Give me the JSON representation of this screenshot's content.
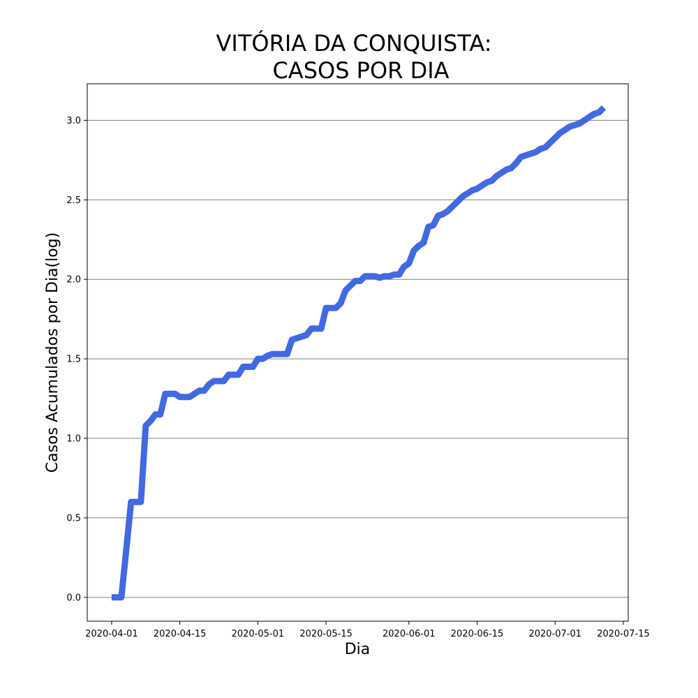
{
  "chart_data": {
    "type": "line",
    "title_lines": [
      "VITÓRIA DA CONQUISTA:",
      "CASOS POR DIA"
    ],
    "xlabel": "Dia",
    "ylabel": "Casos Acumulados por Dia(log)",
    "x_ticks": [
      "2020-04-01",
      "2020-04-15",
      "2020-05-01",
      "2020-05-15",
      "2020-06-01",
      "2020-06-15",
      "2020-07-01",
      "2020-07-15"
    ],
    "y_ticks": [
      "0.0",
      "0.5",
      "1.0",
      "1.5",
      "2.0",
      "2.5",
      "3.0"
    ],
    "ylim": [
      -0.15,
      3.23
    ],
    "xlim": [
      "2020-03-27",
      "2020-07-16"
    ],
    "grid": "horizontal",
    "line_color": "#4169e1",
    "series": [
      {
        "x": [
          "2020-04-01",
          "2020-04-02",
          "2020-04-03",
          "2020-04-04",
          "2020-04-05",
          "2020-04-06",
          "2020-04-07",
          "2020-04-08",
          "2020-04-09",
          "2020-04-10",
          "2020-04-11",
          "2020-04-12",
          "2020-04-13",
          "2020-04-14",
          "2020-04-15",
          "2020-04-16",
          "2020-04-17",
          "2020-04-18",
          "2020-04-19",
          "2020-04-20",
          "2020-04-21",
          "2020-04-22",
          "2020-04-23",
          "2020-04-24",
          "2020-04-25",
          "2020-04-26",
          "2020-04-27",
          "2020-04-28",
          "2020-04-29",
          "2020-04-30",
          "2020-05-01",
          "2020-05-02",
          "2020-05-03",
          "2020-05-04",
          "2020-05-05",
          "2020-05-06",
          "2020-05-07",
          "2020-05-08",
          "2020-05-09",
          "2020-05-10",
          "2020-05-11",
          "2020-05-12",
          "2020-05-13",
          "2020-05-14",
          "2020-05-15",
          "2020-05-16",
          "2020-05-17",
          "2020-05-18",
          "2020-05-19",
          "2020-05-20",
          "2020-05-21",
          "2020-05-22",
          "2020-05-23",
          "2020-05-24",
          "2020-05-25",
          "2020-05-26",
          "2020-05-27",
          "2020-05-28",
          "2020-05-29",
          "2020-05-30",
          "2020-05-31",
          "2020-06-01",
          "2020-06-02",
          "2020-06-03",
          "2020-06-04",
          "2020-06-05",
          "2020-06-06",
          "2020-06-07",
          "2020-06-08",
          "2020-06-09",
          "2020-06-10",
          "2020-06-11",
          "2020-06-12",
          "2020-06-13",
          "2020-06-14",
          "2020-06-15",
          "2020-06-16",
          "2020-06-17",
          "2020-06-18",
          "2020-06-19",
          "2020-06-20",
          "2020-06-21",
          "2020-06-22",
          "2020-06-23",
          "2020-06-24",
          "2020-06-25",
          "2020-06-26",
          "2020-06-27",
          "2020-06-28",
          "2020-06-29",
          "2020-06-30",
          "2020-07-01",
          "2020-07-02",
          "2020-07-03",
          "2020-07-04",
          "2020-07-05",
          "2020-07-06",
          "2020-07-07",
          "2020-07-08",
          "2020-07-09",
          "2020-07-10",
          "2020-07-11"
        ],
        "values": [
          0.0,
          0.0,
          0.0,
          0.3,
          0.6,
          0.6,
          0.6,
          1.08,
          1.11,
          1.15,
          1.15,
          1.28,
          1.28,
          1.28,
          1.26,
          1.26,
          1.26,
          1.28,
          1.3,
          1.3,
          1.34,
          1.36,
          1.36,
          1.36,
          1.4,
          1.4,
          1.4,
          1.45,
          1.45,
          1.45,
          1.5,
          1.5,
          1.52,
          1.53,
          1.53,
          1.53,
          1.53,
          1.62,
          1.63,
          1.64,
          1.65,
          1.69,
          1.69,
          1.69,
          1.82,
          1.82,
          1.82,
          1.85,
          1.93,
          1.96,
          1.99,
          1.99,
          2.02,
          2.02,
          2.02,
          2.01,
          2.02,
          2.02,
          2.03,
          2.03,
          2.08,
          2.1,
          2.18,
          2.21,
          2.23,
          2.33,
          2.34,
          2.4,
          2.41,
          2.43,
          2.46,
          2.49,
          2.52,
          2.54,
          2.56,
          2.57,
          2.59,
          2.61,
          2.62,
          2.65,
          2.67,
          2.69,
          2.7,
          2.73,
          2.77,
          2.78,
          2.79,
          2.8,
          2.82,
          2.83,
          2.86,
          2.89,
          2.92,
          2.94,
          2.96,
          2.97,
          2.98,
          3.0,
          3.02,
          3.04,
          3.05,
          3.08
        ]
      }
    ]
  }
}
